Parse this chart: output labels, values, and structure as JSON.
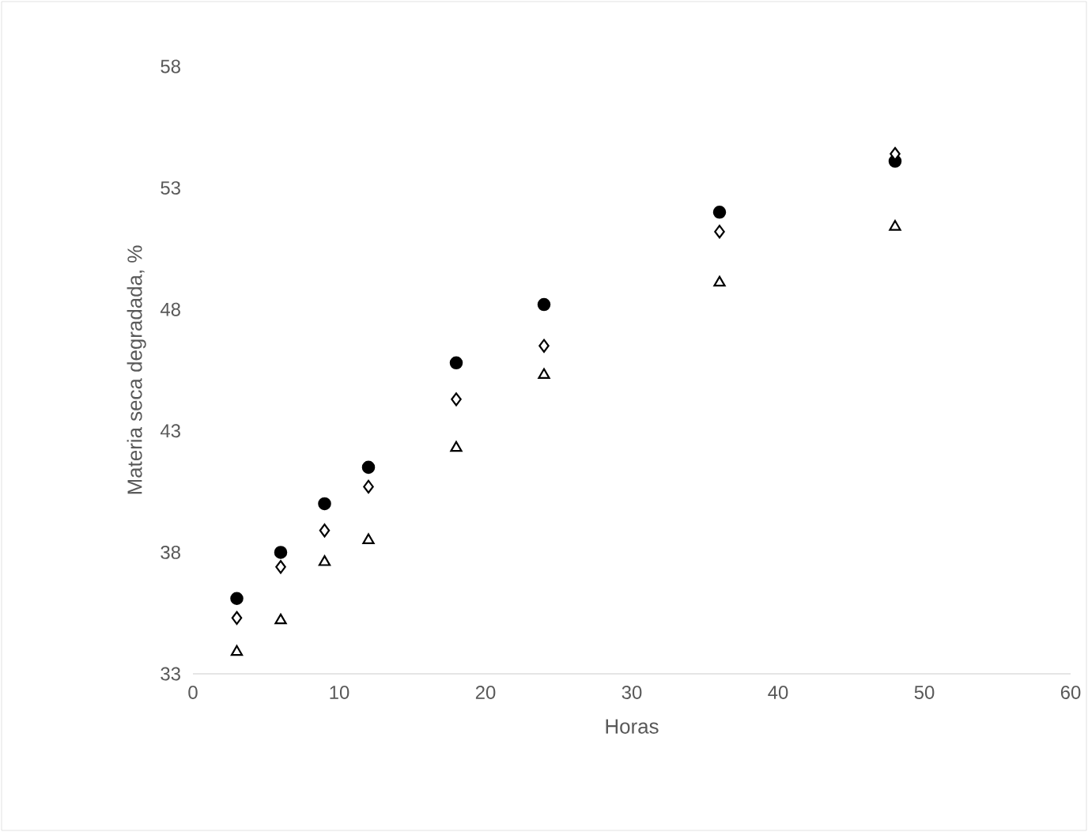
{
  "chart_data": {
    "type": "scatter",
    "xlabel": "Horas",
    "ylabel": "Materia seca degradada, %",
    "xlim": [
      0,
      60
    ],
    "ylim": [
      33,
      58
    ],
    "xticks": [
      0,
      10,
      20,
      30,
      40,
      50,
      60
    ],
    "yticks": [
      33,
      38,
      43,
      48,
      53,
      58
    ],
    "grid": false,
    "series": [
      {
        "color": "#000000",
        "marker": "circle",
        "x": [
          3,
          6,
          9,
          12,
          18,
          24,
          36,
          48
        ],
        "values": [
          36.1,
          38.0,
          40.0,
          41.5,
          45.8,
          48.2,
          52.0,
          54.1
        ]
      },
      {
        "color": "#000000",
        "marker": "diamond",
        "x": [
          3,
          6,
          9,
          12,
          18,
          24,
          36,
          48
        ],
        "values": [
          35.3,
          37.4,
          38.9,
          40.7,
          44.3,
          46.5,
          51.2,
          54.4
        ]
      },
      {
        "color": "#000000",
        "marker": "triangle",
        "x": [
          3,
          6,
          9,
          12,
          18,
          24,
          36,
          48
        ],
        "values": [
          33.9,
          35.2,
          37.6,
          38.5,
          42.3,
          45.3,
          49.1,
          51.4
        ]
      }
    ]
  }
}
